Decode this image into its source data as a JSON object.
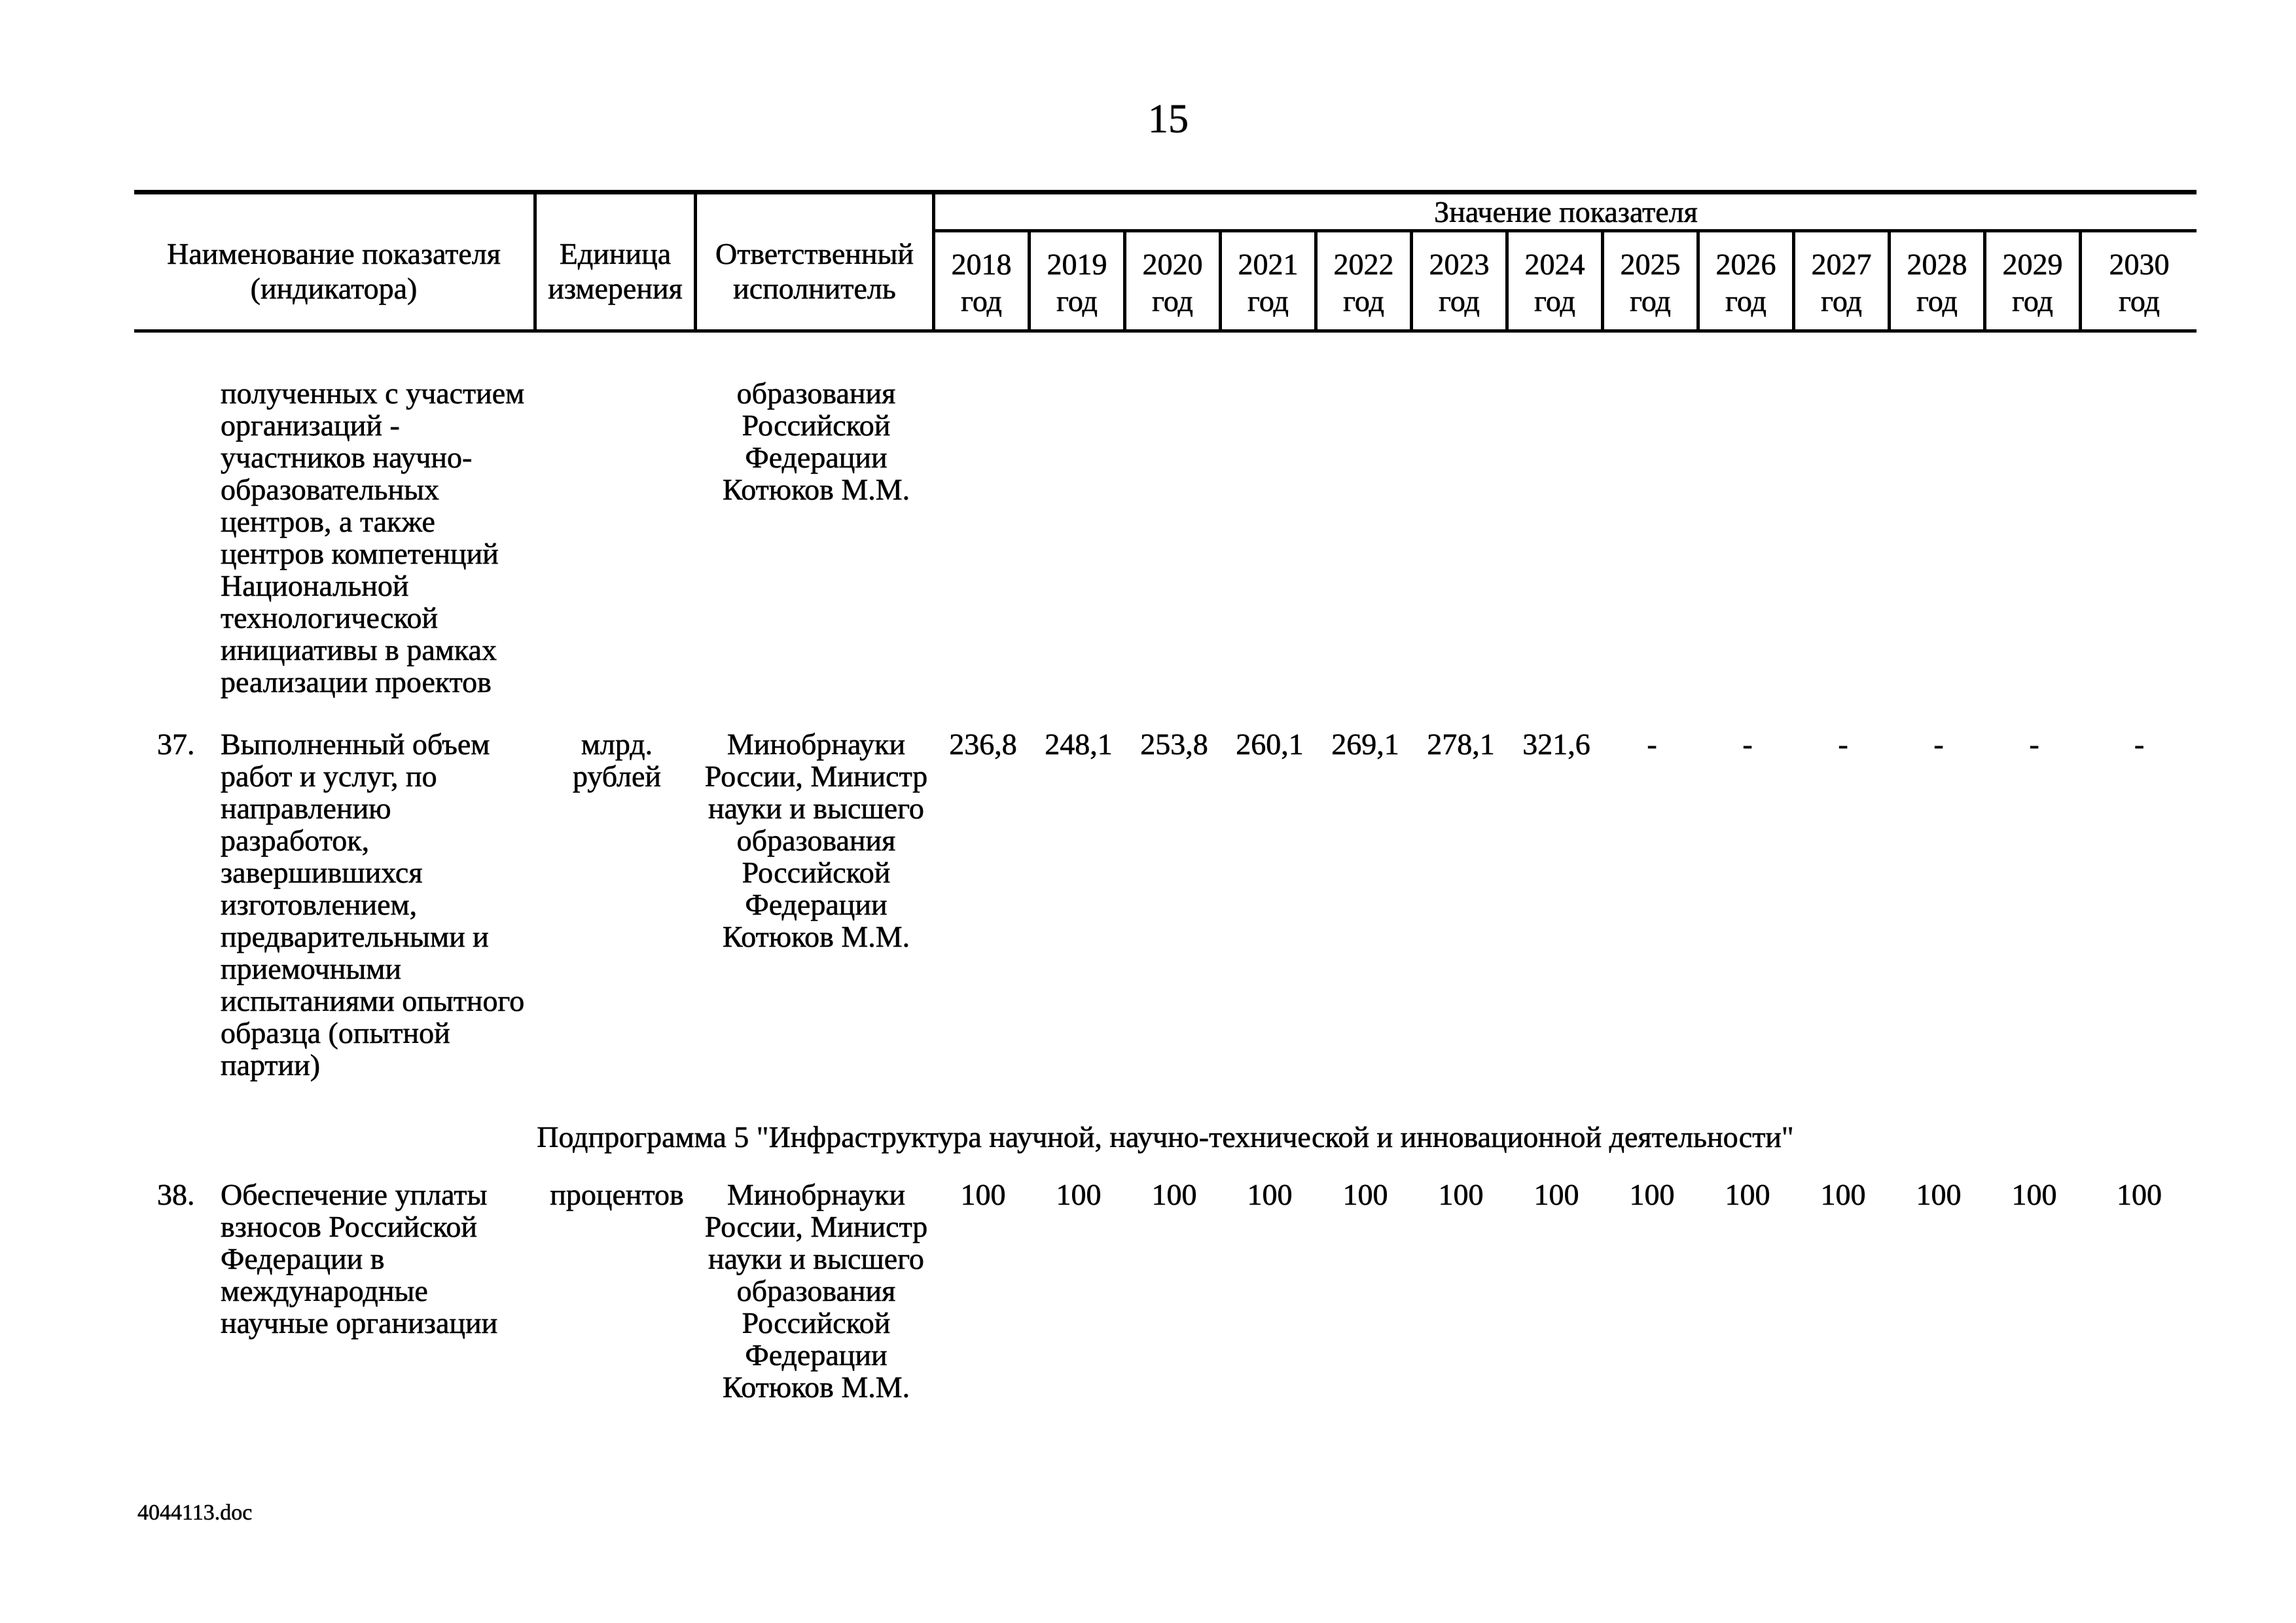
{
  "page": {
    "number": "15",
    "footer": "4044113.doc"
  },
  "table": {
    "header": {
      "indicator_col": [
        "Наименование показателя",
        "(индикатора)"
      ],
      "unit_col": [
        "Единица",
        "измерения"
      ],
      "executive_col": [
        "Ответственный",
        "исполнитель"
      ],
      "values_group_title": "Значение показателя",
      "years": [
        "2018",
        "2019",
        "2020",
        "2021",
        "2022",
        "2023",
        "2024",
        "2025",
        "2026",
        "2027",
        "2028",
        "2029",
        "2030"
      ],
      "year_suffix": "год"
    },
    "rows": [
      {
        "id": "row-36-continuation",
        "type": "indicator",
        "number": "",
        "name_lines": [
          "полученных с участием",
          "организаций -",
          "участников научно-",
          "образовательных",
          "центров, а также",
          "центров компетенций",
          "Национальной",
          "технологической",
          "инициативы в рамках",
          "реализации проектов"
        ],
        "unit_lines": [],
        "executive_lines": [
          "образования",
          "Российской",
          "Федерации",
          "Котюков М.М."
        ],
        "values": []
      },
      {
        "id": "row-37",
        "type": "indicator",
        "number": "37.",
        "name_lines": [
          "Выполненный объем",
          "работ и услуг, по",
          "направлению",
          "разработок,",
          "завершившихся",
          "изготовлением,",
          "предварительными и",
          "приемочными",
          "испытаниями опытного",
          "образца (опытной",
          "партии)"
        ],
        "unit_lines": [
          "млрд.",
          "рублей"
        ],
        "executive_lines": [
          "Минобрнауки",
          "России, Министр",
          "науки и высшего",
          "образования",
          "Российской",
          "Федерации",
          "Котюков М.М."
        ],
        "values": [
          "236,8",
          "248,1",
          "253,8",
          "260,1",
          "269,1",
          "278,1",
          "321,6",
          "-",
          "-",
          "-",
          "-",
          "-",
          "-"
        ]
      },
      {
        "id": "subprogram-5",
        "type": "section",
        "title": "Подпрограмма 5 \"Инфраструктура научной, научно-технической и инновационной деятельности\""
      },
      {
        "id": "row-38",
        "type": "indicator",
        "number": "38.",
        "name_lines": [
          "Обеспечение уплаты",
          "взносов Российской",
          "Федерации в",
          "международные",
          "научные организации"
        ],
        "unit_lines": [
          "процентов"
        ],
        "executive_lines": [
          "Минобрнауки",
          "России, Министр",
          "науки и высшего",
          "образования",
          "Российской",
          "Федерации",
          "Котюков М.М."
        ],
        "values": [
          "100",
          "100",
          "100",
          "100",
          "100",
          "100",
          "100",
          "100",
          "100",
          "100",
          "100",
          "100",
          "100"
        ]
      }
    ]
  }
}
